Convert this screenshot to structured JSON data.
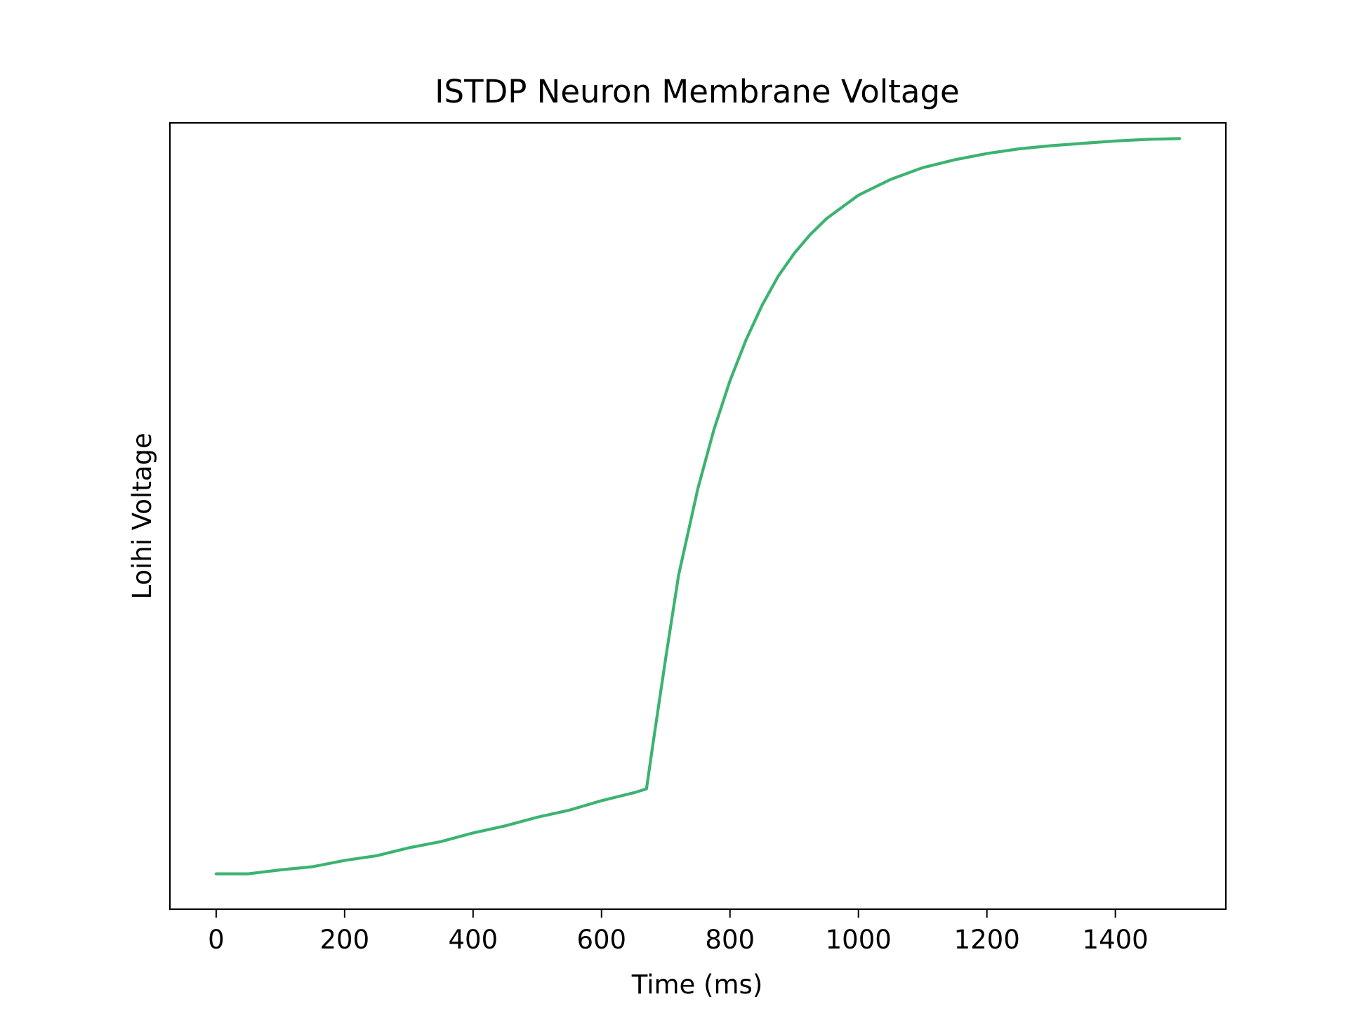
{
  "chart_data": {
    "type": "line",
    "title": "ISTDP Neuron Membrane Voltage",
    "xlabel": "Time (ms)",
    "ylabel": "Loihi Voltage",
    "xlim": [
      -72,
      1572
    ],
    "ylim": [
      0,
      1
    ],
    "x_ticks": [
      0,
      200,
      400,
      600,
      800,
      1000,
      1200,
      1400
    ],
    "y_ticks_shown": false,
    "grid": false,
    "legend": "none",
    "line_color": "#3cb371",
    "series": [
      {
        "x": [
          0,
          50,
          100,
          150,
          200,
          250,
          300,
          350,
          400,
          450,
          500,
          550,
          600,
          650,
          670,
          680,
          700,
          720,
          750,
          775,
          800,
          825,
          850,
          875,
          900,
          925,
          950,
          1000,
          1050,
          1100,
          1150,
          1200,
          1250,
          1300,
          1350,
          1400,
          1450,
          1500
        ],
        "y": [
          0.045,
          0.045,
          0.05,
          0.054,
          0.062,
          0.068,
          0.078,
          0.086,
          0.097,
          0.106,
          0.117,
          0.126,
          0.138,
          0.148,
          0.153,
          0.21,
          0.32,
          0.425,
          0.535,
          0.61,
          0.672,
          0.724,
          0.768,
          0.805,
          0.834,
          0.858,
          0.878,
          0.908,
          0.928,
          0.943,
          0.953,
          0.961,
          0.967,
          0.971,
          0.974,
          0.977,
          0.979,
          0.98
        ]
      }
    ]
  }
}
